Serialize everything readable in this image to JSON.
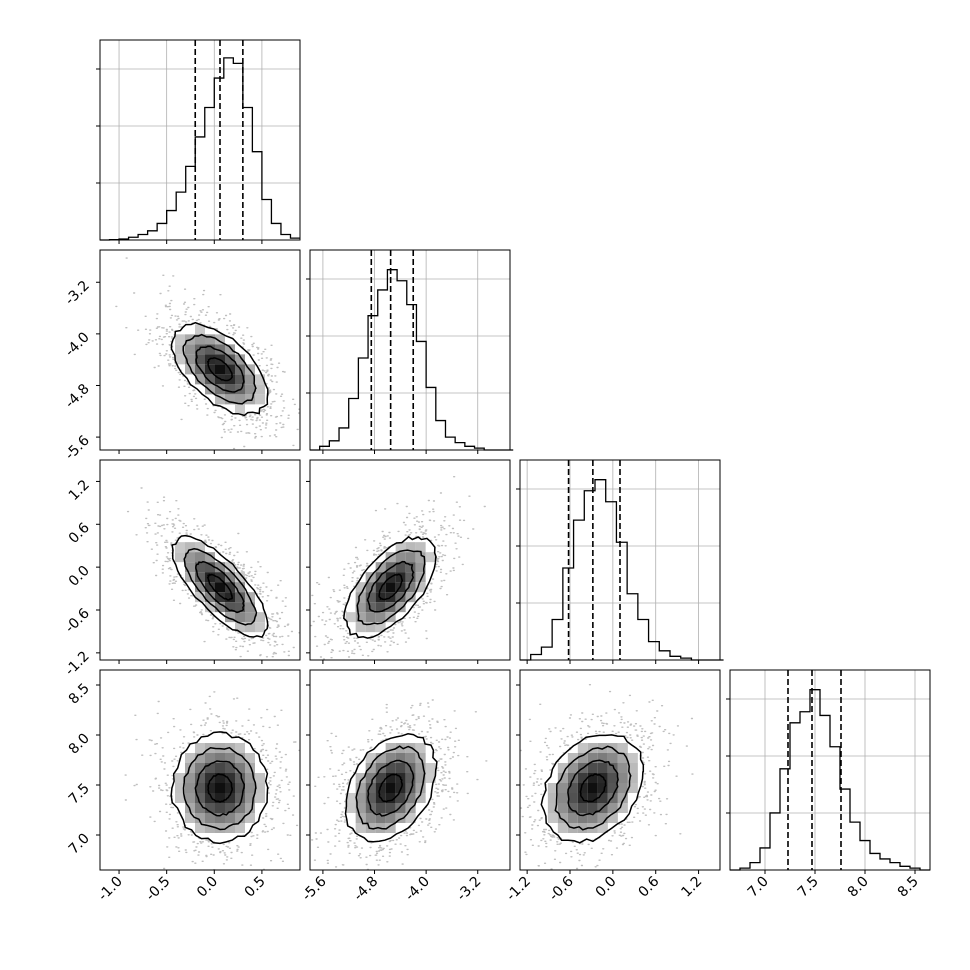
{
  "chart_data": {
    "type": "corner",
    "parameters": 4,
    "panel_axes": [
      {
        "range": [
          -1.2,
          0.9
        ],
        "ticks": [
          "-1.0",
          "-0.5",
          "0.0",
          "0.5"
        ],
        "tick_values": [
          -1.0,
          -0.5,
          0.0,
          0.5
        ]
      },
      {
        "range": [
          -5.8,
          -2.7
        ],
        "ticks": [
          "-5.6",
          "-4.8",
          "-4.0",
          "-3.2"
        ],
        "tick_values": [
          -5.6,
          -4.8,
          -4.0,
          -3.2
        ]
      },
      {
        "range": [
          -1.3,
          1.5
        ],
        "ticks": [
          "-1.2",
          "-0.6",
          "0.0",
          "0.6",
          "1.2"
        ],
        "tick_values": [
          -1.2,
          -0.6,
          0.0,
          0.6,
          1.2
        ]
      },
      {
        "range": [
          6.65,
          8.65
        ],
        "ticks": [
          "7.0",
          "7.5",
          "8.0",
          "8.5"
        ],
        "tick_values": [
          7.0,
          7.5,
          8.0,
          8.5
        ]
      }
    ],
    "quantiles": [
      [
        -0.2,
        0.06,
        0.3
      ],
      [
        -4.85,
        -4.55,
        -4.2
      ],
      [
        -0.62,
        -0.28,
        0.1
      ],
      [
        7.23,
        7.47,
        7.76
      ]
    ],
    "histograms": [
      {
        "bins": [
          -1.2,
          -1.1,
          -1.0,
          -0.9,
          -0.8,
          -0.7,
          -0.6,
          -0.5,
          -0.4,
          -0.3,
          -0.2,
          -0.1,
          0.0,
          0.1,
          0.2,
          0.3,
          0.4,
          0.5,
          0.6,
          0.7,
          0.8,
          0.9
        ],
        "counts": [
          0.0,
          0.002,
          0.005,
          0.015,
          0.03,
          0.05,
          0.09,
          0.16,
          0.26,
          0.4,
          0.56,
          0.72,
          0.88,
          0.99,
          0.96,
          0.72,
          0.48,
          0.22,
          0.09,
          0.03,
          0.01
        ]
      },
      {
        "bins": [
          -5.8,
          -5.65,
          -5.5,
          -5.35,
          -5.2,
          -5.05,
          -4.9,
          -4.75,
          -4.6,
          -4.45,
          -4.3,
          -4.15,
          -4.0,
          -3.85,
          -3.7,
          -3.55,
          -3.4,
          -3.25,
          -3.1,
          -2.95,
          -2.8,
          -2.65
        ],
        "counts": [
          0.0,
          0.02,
          0.05,
          0.12,
          0.28,
          0.5,
          0.73,
          0.87,
          0.98,
          0.92,
          0.79,
          0.59,
          0.34,
          0.16,
          0.07,
          0.04,
          0.02,
          0.01,
          0.0,
          0.0,
          0.0
        ]
      },
      {
        "bins": [
          -1.3,
          -1.15,
          -1.0,
          -0.85,
          -0.7,
          -0.55,
          -0.4,
          -0.25,
          -0.1,
          0.05,
          0.2,
          0.35,
          0.5,
          0.65,
          0.8,
          0.95,
          1.1,
          1.25,
          1.4,
          1.55
        ],
        "counts": [
          0.0,
          0.03,
          0.07,
          0.22,
          0.5,
          0.76,
          0.92,
          0.98,
          0.86,
          0.64,
          0.36,
          0.22,
          0.1,
          0.05,
          0.02,
          0.01,
          0.0,
          0.0,
          0.0
        ]
      },
      {
        "bins": [
          6.65,
          6.75,
          6.85,
          6.95,
          7.05,
          7.15,
          7.25,
          7.35,
          7.45,
          7.55,
          7.65,
          7.75,
          7.85,
          7.95,
          8.05,
          8.15,
          8.25,
          8.35,
          8.45,
          8.55,
          8.65
        ],
        "counts": [
          0.0,
          0.01,
          0.04,
          0.12,
          0.31,
          0.55,
          0.8,
          0.86,
          0.98,
          0.84,
          0.67,
          0.44,
          0.26,
          0.16,
          0.09,
          0.06,
          0.04,
          0.02,
          0.01,
          0.0
        ]
      }
    ],
    "pairs": [
      {
        "x_param": 0,
        "y_param": 1,
        "mean": [
          0.06,
          -4.55
        ],
        "std": [
          0.25,
          0.35
        ],
        "corr": -0.55
      },
      {
        "x_param": 0,
        "y_param": 2,
        "mean": [
          0.06,
          -0.28
        ],
        "std": [
          0.25,
          0.35
        ],
        "corr": -0.75
      },
      {
        "x_param": 1,
        "y_param": 2,
        "mean": [
          -4.55,
          -0.28
        ],
        "std": [
          0.35,
          0.35
        ],
        "corr": 0.6
      },
      {
        "x_param": 0,
        "y_param": 3,
        "mean": [
          0.06,
          7.47
        ],
        "std": [
          0.25,
          0.27
        ],
        "corr": 0.0
      },
      {
        "x_param": 1,
        "y_param": 3,
        "mean": [
          -4.55,
          7.47
        ],
        "std": [
          0.35,
          0.27
        ],
        "corr": 0.35
      },
      {
        "x_param": 2,
        "y_param": 3,
        "mean": [
          -0.28,
          7.47
        ],
        "std": [
          0.35,
          0.27
        ],
        "corr": 0.3
      }
    ],
    "contour_levels_sigma": [
      0.5,
      1.0,
      1.5,
      2.0
    ],
    "grid": true
  }
}
